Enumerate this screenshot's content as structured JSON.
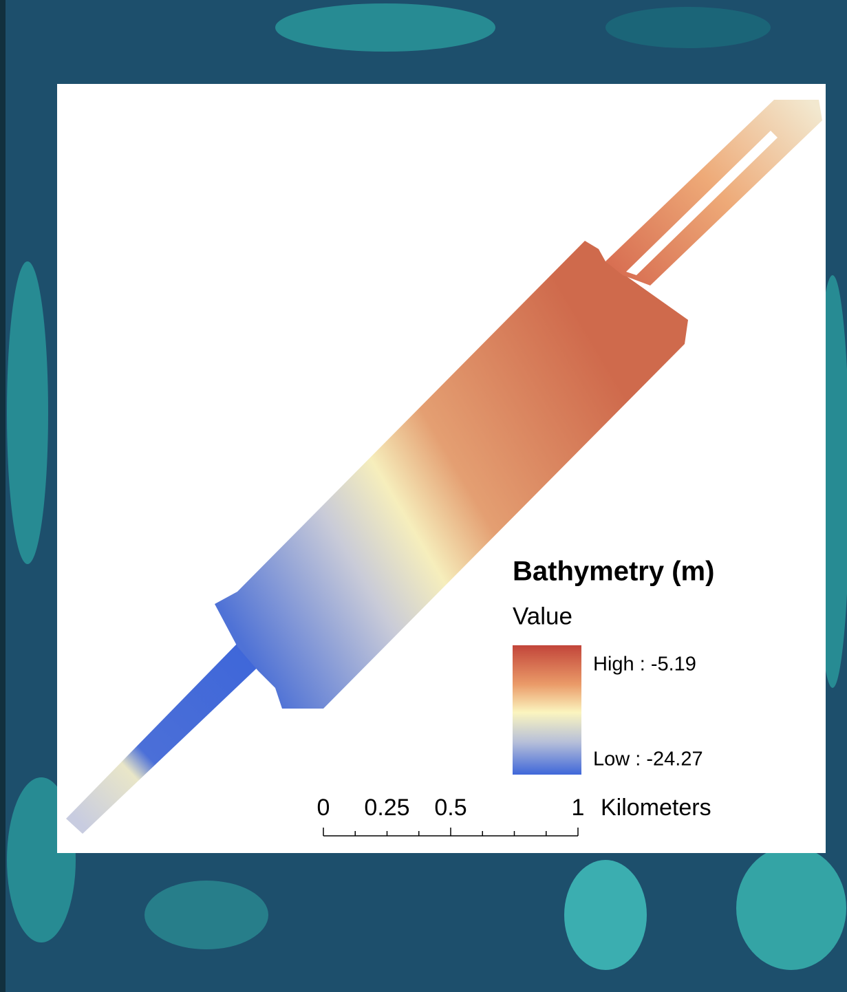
{
  "legend": {
    "title": "Bathymetry (m)",
    "subtitle": "Value",
    "high": "High : -5.19",
    "low": "Low : -24.27"
  },
  "scale_bar": {
    "ticks": [
      0,
      0.25,
      0.5,
      1
    ],
    "unit": "Kilometers"
  }
}
